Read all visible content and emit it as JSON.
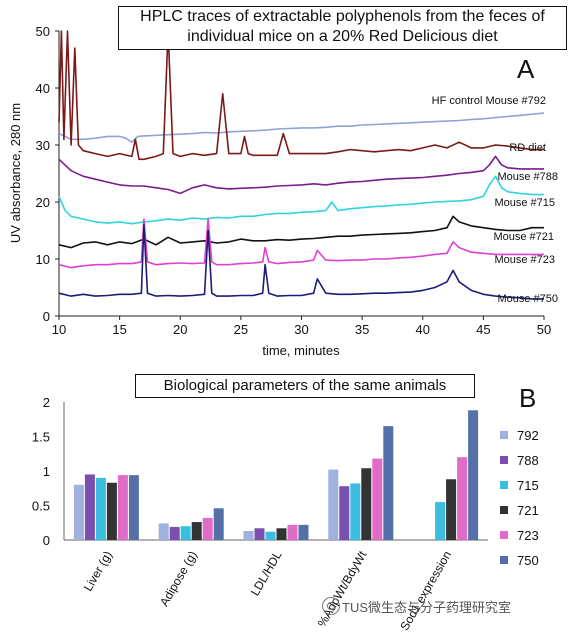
{
  "figure": {
    "panel_a_letter": "A",
    "panel_b_letter": "B",
    "watermark": "TUS微生态与分子药理研究室"
  },
  "chart_data": [
    {
      "type": "line",
      "title": "HPLC traces of extractable polyphenols from the feces of individual mice on a 20% Red Delicious diet",
      "title_lines": [
        "HPLC traces of extractable polyphenols from the feces of",
        "individual mice on a 20% Red Delicious diet"
      ],
      "xlabel": "time, minutes",
      "ylabel": "UV absorbance, 280 nm",
      "xlim": [
        10,
        50
      ],
      "ylim": [
        0,
        50
      ],
      "xticks": [
        "10",
        "15",
        "20",
        "25",
        "30",
        "35",
        "40",
        "45",
        "50"
      ],
      "yticks": [
        "0",
        "10",
        "20",
        "30",
        "40",
        "50"
      ],
      "grid": false,
      "series": [
        {
          "name": "HF control Mouse #792",
          "color": "#8fa3d6",
          "x": [
            10,
            10.5,
            11,
            12,
            13,
            14,
            15,
            15.5,
            16,
            16.5,
            17,
            18,
            19,
            20,
            21,
            22,
            23,
            24,
            25,
            26,
            27,
            28,
            29,
            30,
            31,
            32,
            33,
            34,
            35,
            36,
            37,
            38,
            39,
            40,
            41,
            42,
            43,
            44,
            45,
            46,
            47,
            48,
            49,
            50
          ],
          "y": [
            32,
            31.5,
            31,
            31,
            31.2,
            31.5,
            31.5,
            31.2,
            30.5,
            31.5,
            31.6,
            31.7,
            31.8,
            31.9,
            32,
            32.2,
            32.1,
            32.3,
            32.4,
            32.5,
            32.6,
            32.8,
            32.9,
            33,
            33,
            33.1,
            33.3,
            33.3,
            33.5,
            33.6,
            33.7,
            33.8,
            33.9,
            34,
            34.1,
            34.2,
            34.3,
            34.5,
            34.6,
            34.8,
            35,
            35.2,
            35.4,
            35.6
          ]
        },
        {
          "name": "RD diet",
          "color": "#7b1a1a",
          "x": [
            10,
            10.2,
            10.4,
            10.7,
            11,
            11.3,
            11.6,
            12,
            13,
            14,
            15,
            16,
            16.3,
            16.6,
            17,
            18,
            18.6,
            19,
            19.4,
            20,
            21,
            22,
            23,
            23.5,
            24,
            25,
            25.3,
            25.6,
            26,
            27,
            28,
            28.5,
            29,
            30,
            31,
            32,
            33,
            34,
            35,
            36,
            37,
            38,
            39,
            40,
            41,
            42,
            43,
            44,
            45,
            46,
            47,
            48,
            49,
            50
          ],
          "y": [
            34,
            50,
            31,
            50,
            30,
            47,
            30,
            29,
            28.5,
            28,
            28.5,
            28,
            31,
            27.5,
            27.5,
            28,
            28.5,
            50,
            28.5,
            28,
            28.5,
            28.2,
            28.5,
            39,
            28.5,
            28.5,
            31.5,
            28.5,
            28.2,
            28.2,
            28.2,
            32,
            28.5,
            28.5,
            28.5,
            28.5,
            28.8,
            29.2,
            29,
            28.8,
            29,
            29.2,
            29,
            29.5,
            30,
            29.5,
            30.5,
            29.5,
            29.5,
            30,
            29.8,
            29.5,
            29.2,
            29.2
          ]
        },
        {
          "name": "Mouse #788",
          "color": "#7a1d8c",
          "x": [
            10,
            11,
            12,
            13,
            14,
            15,
            16,
            17,
            18,
            19,
            20,
            21,
            22,
            23,
            24,
            25,
            26,
            27,
            28,
            29,
            30,
            31,
            32,
            33,
            34,
            35,
            36,
            37,
            38,
            39,
            40,
            41,
            42,
            43,
            44,
            45,
            45.5,
            46,
            46.5,
            47,
            48,
            49,
            50
          ],
          "y": [
            27.5,
            25.5,
            24.5,
            24,
            23.5,
            23,
            22.8,
            22.8,
            22.5,
            22.2,
            21.5,
            22.5,
            23,
            22.5,
            22.3,
            22.4,
            22.5,
            22.6,
            22.8,
            22.9,
            23,
            23.2,
            23,
            23.3,
            23.5,
            23.6,
            23.8,
            24,
            24.1,
            24.2,
            24.3,
            24.5,
            24.7,
            25,
            25.2,
            25.5,
            26.5,
            28,
            26.5,
            26,
            25.8,
            25.8,
            25.8
          ]
        },
        {
          "name": "Mouse #715",
          "color": "#2fd4e0",
          "x": [
            10,
            10.5,
            11,
            12,
            13,
            14,
            15,
            16,
            17,
            18,
            19,
            20,
            21,
            22,
            23,
            24,
            25,
            26,
            27,
            28,
            29,
            30,
            31,
            32,
            32.5,
            33,
            34,
            35,
            36,
            37,
            38,
            39,
            40,
            41,
            42,
            43,
            44,
            45,
            45.5,
            46,
            46.5,
            47,
            48,
            49,
            50
          ],
          "y": [
            21,
            18.5,
            17.5,
            17,
            16.5,
            16.3,
            16.5,
            16.2,
            16.5,
            16.7,
            17,
            16.8,
            17.2,
            17,
            17.3,
            17.2,
            17.5,
            17.5,
            17.8,
            18,
            18,
            18.2,
            18.3,
            18.5,
            20,
            18.5,
            18.8,
            19,
            19.2,
            19.3,
            19.5,
            19.6,
            19.8,
            20,
            20.1,
            20.2,
            20.4,
            21,
            23,
            24.5,
            22.5,
            21.8,
            21.5,
            21.3,
            21.3
          ]
        },
        {
          "name": "Mouse #721",
          "color": "#111111",
          "x": [
            10,
            11,
            12,
            13,
            14,
            15,
            16,
            17,
            18,
            19,
            20,
            21,
            22,
            23,
            24,
            25,
            26,
            27,
            28,
            29,
            30,
            31,
            32,
            33,
            34,
            35,
            36,
            37,
            38,
            39,
            40,
            41,
            42,
            42.5,
            43,
            44,
            45,
            46,
            47,
            48,
            49,
            50
          ],
          "y": [
            12.5,
            12,
            12.8,
            13,
            12.5,
            13,
            12.7,
            13.5,
            12.5,
            13.8,
            12.8,
            13,
            13.2,
            12.8,
            13,
            13.5,
            13.2,
            13.2,
            13.4,
            13.3,
            13.5,
            13.6,
            13.8,
            14,
            14,
            14.2,
            14.3,
            14.4,
            14.5,
            14.6,
            14.8,
            15,
            15.5,
            17.5,
            16.5,
            15.8,
            15.5,
            15.2,
            15,
            15,
            15.5,
            15.5
          ]
        },
        {
          "name": "Mouse #723",
          "color": "#e040d0",
          "x": [
            10,
            11,
            12,
            13,
            14,
            15,
            16,
            16.8,
            17,
            17.3,
            18,
            19,
            20,
            21,
            22,
            22.3,
            22.6,
            23,
            24,
            25,
            26,
            26.8,
            27,
            27.3,
            28,
            29,
            30,
            31,
            31.3,
            32,
            33,
            34,
            35,
            36,
            37,
            38,
            39,
            40,
            41,
            42,
            42.5,
            43,
            44,
            45,
            46,
            47,
            48,
            49,
            50
          ],
          "y": [
            9,
            8.5,
            8.8,
            9,
            9,
            9.2,
            9.2,
            9.5,
            17,
            9.5,
            9,
            9.2,
            9.3,
            9.2,
            9.3,
            17,
            9.5,
            9,
            9,
            9.2,
            9.3,
            9.5,
            12,
            9.5,
            9.2,
            9.4,
            9.5,
            9.8,
            11.5,
            9.8,
            9.7,
            9.8,
            9.8,
            10,
            10,
            10.2,
            10.3,
            10.5,
            10.8,
            11,
            13,
            12,
            11.2,
            11,
            10.8,
            10.8,
            10.8,
            10.8,
            10.8
          ]
        },
        {
          "name": "Mouse #750",
          "color": "#1c1c78",
          "x": [
            10,
            11,
            12,
            13,
            14,
            15,
            16,
            16.8,
            17,
            17.3,
            18,
            19,
            20,
            21,
            22,
            22.3,
            22.6,
            23,
            24,
            25,
            26,
            26.8,
            27,
            27.3,
            28,
            29,
            30,
            31,
            31.3,
            32,
            33,
            34,
            35,
            36,
            37,
            38,
            39,
            40,
            41,
            42,
            42.5,
            43,
            44,
            45,
            46,
            47,
            48,
            49,
            50
          ],
          "y": [
            4,
            3.5,
            3.8,
            3.5,
            3.6,
            3.8,
            3.8,
            4,
            16,
            4,
            3.5,
            3.6,
            3.5,
            3.6,
            3.8,
            15,
            4,
            3.5,
            3.5,
            3.6,
            3.6,
            4,
            9,
            4,
            3.5,
            3.6,
            3.6,
            4,
            6.5,
            4,
            3.8,
            3.8,
            3.9,
            4,
            4,
            4.1,
            4.2,
            4.5,
            5,
            6,
            8,
            6,
            4.5,
            3.8,
            3.5,
            3.3,
            3.2,
            3,
            3
          ]
        }
      ],
      "series_labels": [
        "HF control Mouse #792",
        "RD diet",
        "Mouse #788",
        "Mouse #715",
        "Mouse #721",
        "Mouse #723",
        "Mouse #750"
      ]
    },
    {
      "type": "bar",
      "title": "Biological parameters of the same animals",
      "categories": [
        "Liver (g)",
        "Adipose (g)",
        "LDL/HDL",
        "%AdpWt/BdyWt",
        "Sod1 expression"
      ],
      "ylim": [
        0,
        2
      ],
      "yticks": [
        "0",
        "0.5",
        "1",
        "1.5",
        "2"
      ],
      "legend_position": "right",
      "grid": false,
      "series": [
        {
          "name": "792",
          "color": "#9fb1dc",
          "values": [
            0.8,
            0.24,
            0.13,
            1.02,
            0
          ]
        },
        {
          "name": "788",
          "color": "#7a4fb0",
          "values": [
            0.95,
            0.19,
            0.17,
            0.78,
            0
          ]
        },
        {
          "name": "715",
          "color": "#3bbde0",
          "values": [
            0.9,
            0.2,
            0.12,
            0.82,
            0.55
          ]
        },
        {
          "name": "721",
          "color": "#333333",
          "values": [
            0.83,
            0.26,
            0.17,
            1.04,
            0.88
          ]
        },
        {
          "name": "723",
          "color": "#e06cc8",
          "values": [
            0.94,
            0.32,
            0.22,
            1.18,
            1.2
          ]
        },
        {
          "name": "750",
          "color": "#5570a8",
          "values": [
            0.94,
            0.46,
            0.22,
            1.65,
            1.88
          ]
        }
      ]
    }
  ]
}
